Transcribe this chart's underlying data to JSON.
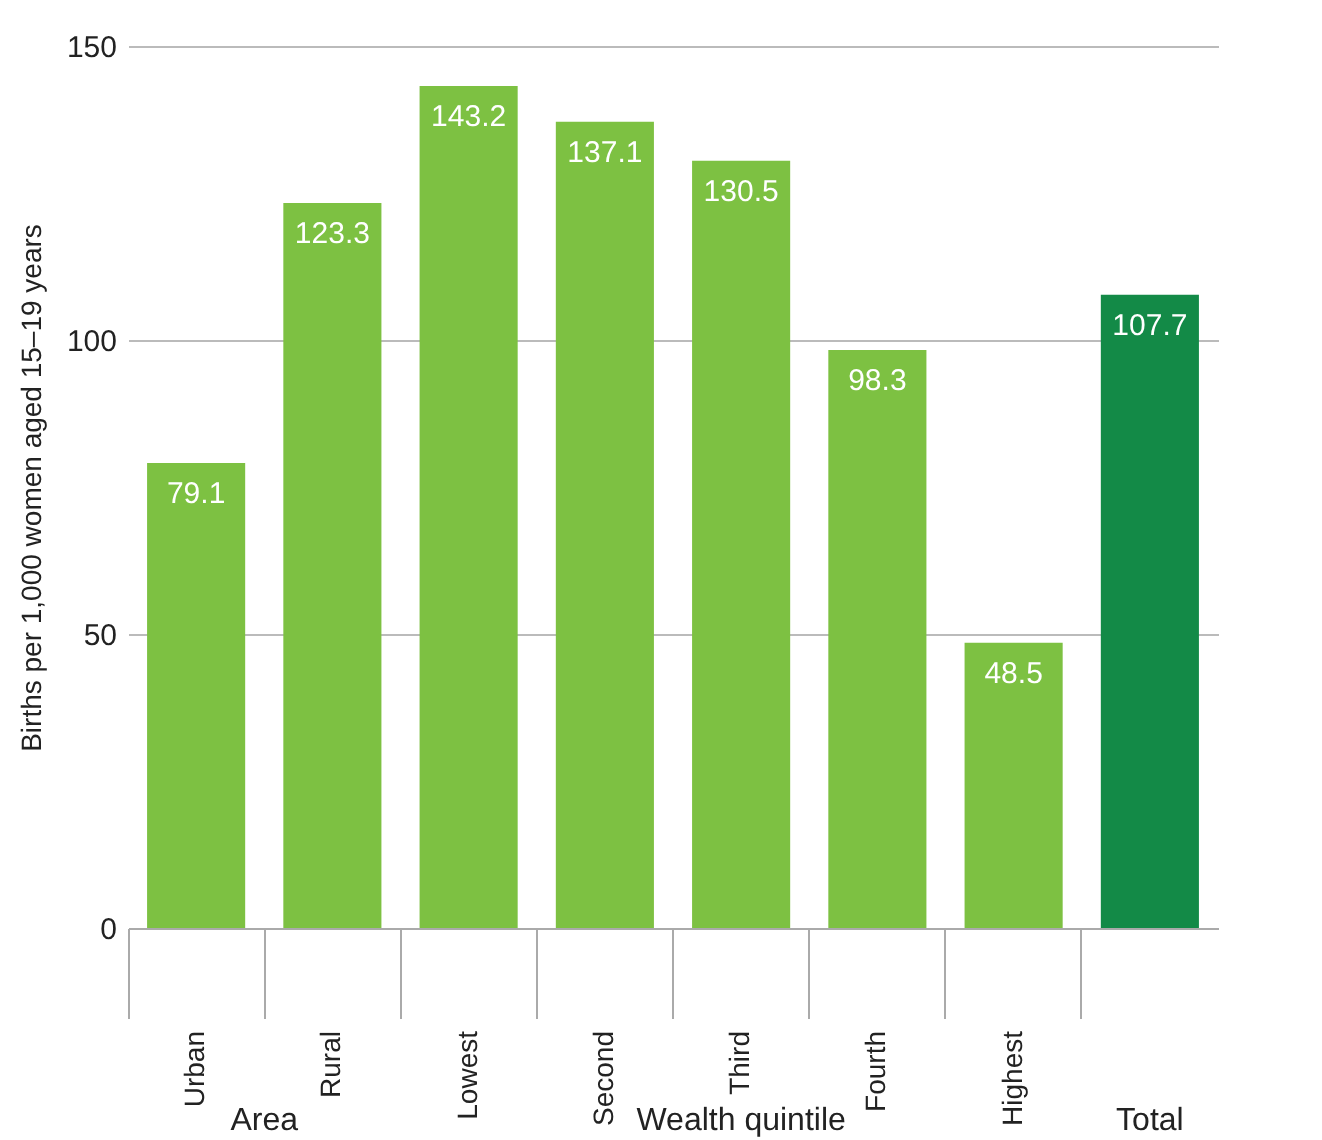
{
  "chart_data": {
    "type": "bar",
    "categories": [
      "Urban",
      "Rural",
      "Lowest",
      "Second",
      "Third",
      "Fourth",
      "Highest",
      null
    ],
    "values": [
      79.1,
      123.3,
      143.2,
      137.1,
      130.5,
      98.3,
      48.5,
      107.7
    ],
    "colors": [
      "#7dc142",
      "#7dc142",
      "#7dc142",
      "#7dc142",
      "#7dc142",
      "#7dc142",
      "#7dc142",
      "#138a47"
    ],
    "ylabel": "Births per 1,000 women aged 15–19 years",
    "ylim": [
      0,
      150
    ],
    "yticks": [
      0,
      50,
      100,
      150
    ],
    "grid": "y",
    "data_labels": true,
    "annotations": [
      "Area",
      "Wealth quintile",
      "Total"
    ]
  }
}
